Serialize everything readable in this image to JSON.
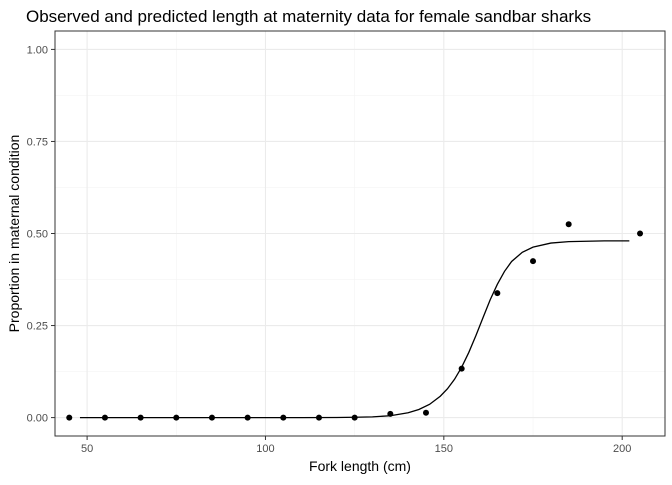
{
  "chart_data": {
    "type": "scatter",
    "title": "Observed and predicted length at maternity data for female sandbar sharks",
    "xlabel": "Fork length (cm)",
    "ylabel": "Proportion in maternal condition",
    "xlim": [
      41,
      212
    ],
    "ylim": [
      -0.05,
      1.05
    ],
    "x_ticks": [
      50,
      100,
      150,
      200
    ],
    "x_tick_labels": [
      "50",
      "100",
      "150",
      "200"
    ],
    "y_ticks": [
      0,
      0.25,
      0.5,
      0.75,
      1
    ],
    "y_tick_labels": [
      "0.00",
      "0.25",
      "0.50",
      "0.75",
      "1.00"
    ],
    "grid": true,
    "legend": "none",
    "series": [
      {
        "kind": "points",
        "x": [
          45,
          55,
          65,
          75,
          85,
          95,
          105,
          115,
          125,
          135,
          145,
          155,
          165,
          175,
          185,
          205
        ],
        "y": [
          0,
          0,
          0,
          0,
          0,
          0,
          0,
          0,
          0,
          0.01,
          0.013,
          0.133,
          0.338,
          0.425,
          0.525,
          0.5
        ]
      },
      {
        "kind": "line",
        "x": [
          48,
          70,
          90,
          110,
          120,
          125,
          130,
          135,
          140,
          143,
          146,
          149,
          151,
          153,
          155,
          157,
          159,
          161,
          163,
          165,
          167,
          169,
          172,
          175,
          180,
          185,
          190,
          195,
          202
        ],
        "y": [
          0,
          0,
          0,
          0,
          0.0003,
          0.001,
          0.002,
          0.005,
          0.013,
          0.022,
          0.036,
          0.058,
          0.078,
          0.104,
          0.137,
          0.177,
          0.223,
          0.272,
          0.32,
          0.362,
          0.397,
          0.424,
          0.449,
          0.463,
          0.474,
          0.478,
          0.479,
          0.48,
          0.48
        ]
      }
    ]
  }
}
